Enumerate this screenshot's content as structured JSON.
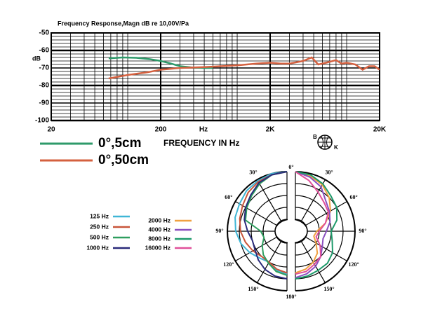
{
  "chart_data": [
    {
      "type": "line",
      "title": "Frequency Response,Magn dB re 10,00V/Pa",
      "y_label": "dB",
      "x_label": "FREQUENCY IN Hz",
      "x_unit": "Hz",
      "log_x": true,
      "grid": true,
      "xlim": [
        20,
        20000
      ],
      "xticks": [
        20,
        200,
        {
          "value": 2000,
          "label": "2K"
        },
        {
          "value": 20000,
          "label": "20K"
        }
      ],
      "ylim": [
        -100,
        -50
      ],
      "yticks": [
        -50,
        -60,
        -70,
        -80,
        -90,
        -100
      ],
      "series": [
        {
          "name": "0°,5cm",
          "color": "#2e9a6a",
          "x": [
            67,
            90,
            120,
            160,
            200,
            250,
            300,
            400,
            500,
            600
          ],
          "values": [
            -64.5,
            -64,
            -64.2,
            -65,
            -66,
            -67.5,
            -69,
            -69.8,
            -70,
            -70
          ]
        },
        {
          "name": "0°,50cm",
          "color": "#d4603f",
          "x": [
            67,
            100,
            150,
            200,
            300,
            500,
            1000,
            1500,
            2000,
            2500,
            3000,
            4000,
            4800,
            5500,
            6500,
            8000,
            9000,
            10000,
            12000,
            14000,
            16000,
            18000,
            20000
          ],
          "values": [
            -76,
            -74,
            -72.5,
            -71,
            -70,
            -69.5,
            -68.5,
            -67.5,
            -67,
            -67.5,
            -67.5,
            -66,
            -64,
            -68,
            -67,
            -65.5,
            -67.5,
            -67,
            -68,
            -71,
            -69,
            -69,
            -71
          ]
        }
      ]
    },
    {
      "type": "polar",
      "logo": [
        "B",
        "K"
      ],
      "rlim": [
        0,
        5
      ],
      "rticks": [
        1,
        2,
        3,
        4,
        5
      ],
      "angle_ticks": [
        {
          "value": 0,
          "label": "0°"
        },
        {
          "value": 30,
          "label": "30°"
        },
        {
          "value": 60,
          "label": "60°"
        },
        {
          "value": 90,
          "label": "90°"
        },
        {
          "value": 120,
          "label": "120°"
        },
        {
          "value": 150,
          "label": "150°"
        },
        {
          "value": 180,
          "label": "180°"
        }
      ],
      "angles": [
        0,
        15,
        30,
        45,
        60,
        75,
        90,
        105,
        120,
        135,
        150,
        165,
        180
      ],
      "series": [
        {
          "name": "125 Hz",
          "color": "#3fb6d6",
          "side": "left",
          "values": [
            5,
            5,
            4.9,
            4.8,
            4.6,
            4.5,
            4.3,
            4.0,
            3.6,
            3.2,
            3.0,
            3.4,
            3.6
          ]
        },
        {
          "name": "250 Hz",
          "color": "#c8553a",
          "side": "left",
          "values": [
            5,
            4.9,
            4.8,
            4.6,
            4.3,
            4.1,
            3.9,
            3.6,
            3.3,
            3.0,
            3.0,
            3.3,
            3.5
          ]
        },
        {
          "name": "500 Hz",
          "color": "#2e9e5e",
          "side": "left",
          "values": [
            5,
            4.9,
            4.6,
            4.2,
            3.9,
            3.6,
            2.2,
            2.0,
            2.4,
            2.8,
            3.1,
            3.5,
            3.7
          ]
        },
        {
          "name": "1000 Hz",
          "color": "#2a2a7a",
          "side": "left",
          "values": [
            5,
            4.9,
            4.7,
            4.3,
            4.0,
            3.7,
            3.3,
            3.0,
            3.1,
            3.4,
            3.7,
            3.9,
            4.0
          ]
        },
        {
          "name": "2000 Hz",
          "color": "#f0a040",
          "side": "right",
          "values": [
            5,
            4.8,
            4.5,
            4.0,
            3.4,
            2.6,
            1.8,
            1.6,
            2.0,
            2.6,
            3.0,
            3.3,
            3.5
          ]
        },
        {
          "name": "4000 Hz",
          "color": "#8a4fbf",
          "side": "right",
          "values": [
            5,
            4.7,
            4.3,
            3.6,
            3.3,
            3.0,
            2.6,
            2.4,
            2.6,
            3.0,
            3.4,
            3.7,
            3.9
          ]
        },
        {
          "name": "8000 Hz",
          "color": "#1d9a6a",
          "side": "right",
          "values": [
            5,
            4.9,
            4.6,
            4.2,
            4.0,
            3.6,
            3.0,
            3.2,
            3.6,
            3.8,
            3.8,
            3.9,
            4.0
          ]
        },
        {
          "name": "16000 Hz",
          "color": "#e0509a",
          "side": "right",
          "values": [
            5,
            4.4,
            3.8,
            3.4,
            3.2,
            2.6,
            2.0,
            1.8,
            2.4,
            3.0,
            3.2,
            3.5,
            3.6
          ]
        }
      ]
    }
  ]
}
